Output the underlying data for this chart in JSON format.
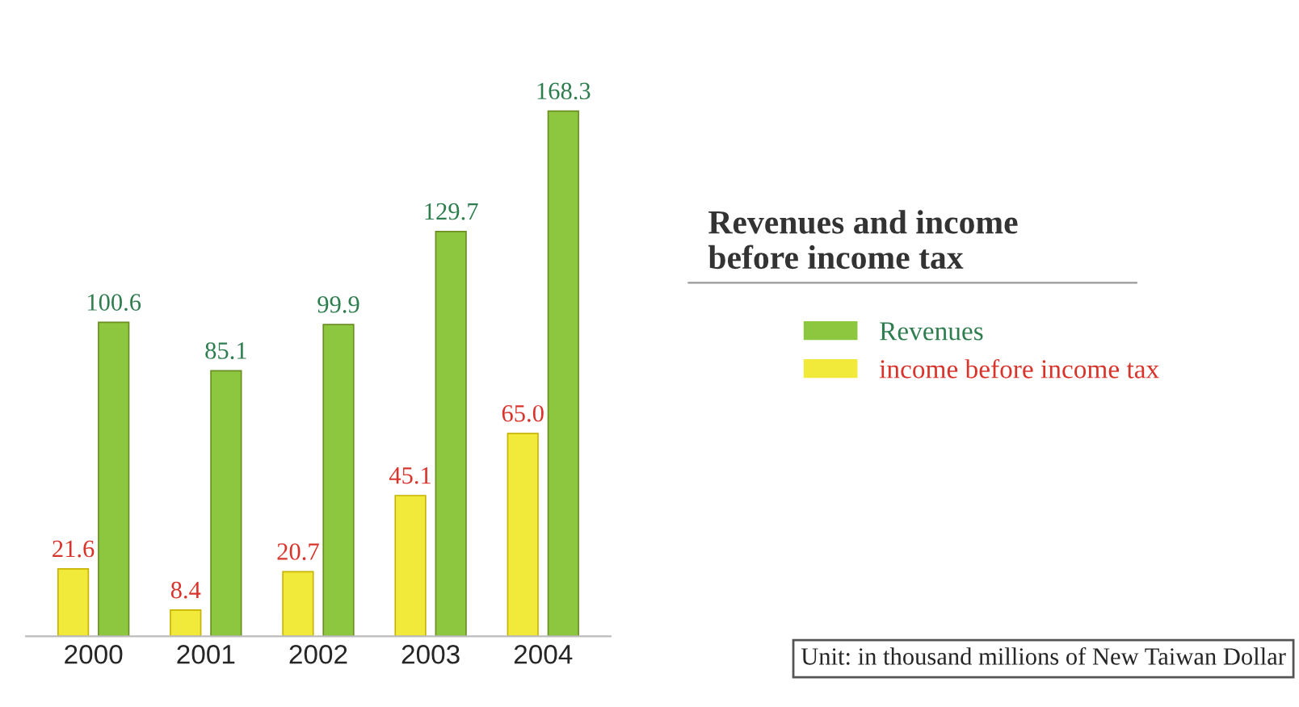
{
  "chart_data": {
    "type": "bar",
    "title": "Revenues and income\nbefore income tax",
    "categories": [
      "2000",
      "2001",
      "2002",
      "2003",
      "2004"
    ],
    "series": [
      {
        "name": "Revenues",
        "color": "#8dc63f",
        "values": [
          100.6,
          85.1,
          99.9,
          129.7,
          168.3
        ],
        "value_labels": [
          "100.6",
          "85.1",
          "99.9",
          "129.7",
          "168.3"
        ]
      },
      {
        "name": "income before income tax",
        "color": "#f2ea3a",
        "values": [
          21.6,
          8.4,
          20.7,
          45.1,
          65.0
        ],
        "value_labels": [
          "21.6",
          "8.4",
          "20.7",
          "45.1",
          "65.0"
        ]
      }
    ],
    "tick_labels": "x",
    "legend": "right",
    "annotations": [
      "Unit: in thousand millions of New Taiwan Dollar"
    ]
  }
}
